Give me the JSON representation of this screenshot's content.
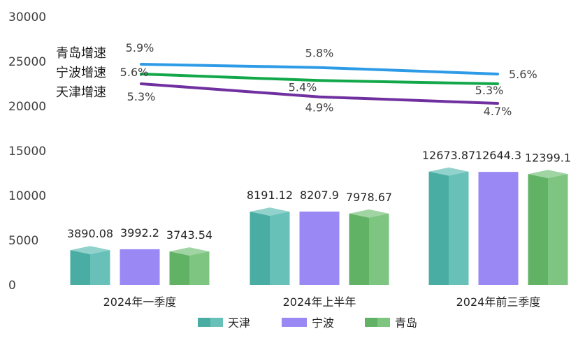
{
  "chart_data": {
    "type": "bar",
    "categories": [
      "2024年一季度",
      "2024年上半年",
      "2024年前三季度"
    ],
    "ylim": [
      0,
      30000
    ],
    "yticks": [
      0,
      5000,
      10000,
      15000,
      20000,
      25000,
      30000
    ],
    "series": [
      {
        "name": "天津",
        "values": [
          3890.08,
          8191.12,
          12673.87
        ],
        "labels": [
          "3890.08",
          "8191.12",
          "12673.87"
        ],
        "color": "#4db6ac",
        "style": "3d-box"
      },
      {
        "name": "宁波",
        "values": [
          3992.2,
          8207.9,
          12644.3
        ],
        "labels": [
          "3992.2",
          "8207.9",
          "12644.3"
        ],
        "color": "#9a88f4",
        "style": "flat"
      },
      {
        "name": "青岛",
        "values": [
          3743.54,
          7978.67,
          12399.1
        ],
        "labels": [
          "3743.54",
          "7978.67",
          "12399.1"
        ],
        "color": "#66bb6a",
        "style": "3d-box"
      }
    ],
    "growth_lines": [
      {
        "name": "青岛增速",
        "values": [
          5.9,
          5.8,
          5.6
        ],
        "labels": [
          "5.9%",
          "5.8%",
          "5.6%"
        ],
        "color": "#2e9be6"
      },
      {
        "name": "宁波增速",
        "values": [
          5.6,
          5.4,
          5.3
        ],
        "labels": [
          "5.6%",
          "5.4%",
          "5.3%"
        ],
        "color": "#12a84a"
      },
      {
        "name": "天津增速",
        "values": [
          5.3,
          4.9,
          4.7
        ],
        "labels": [
          "5.3%",
          "4.9%",
          "4.7%"
        ],
        "color": "#7030a0"
      }
    ],
    "legend": {
      "position": "bottom",
      "entries": [
        "天津",
        "宁波",
        "青岛"
      ]
    },
    "grid": false
  }
}
